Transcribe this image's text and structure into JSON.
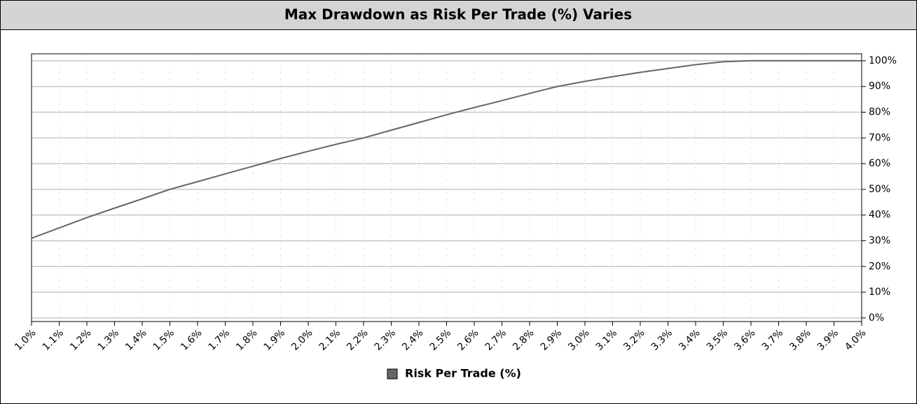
{
  "chart_data": {
    "type": "line",
    "title": "Max Drawdown as Risk Per Trade (%) Varies",
    "x": [
      1.0,
      1.1,
      1.2,
      1.3,
      1.4,
      1.5,
      1.6,
      1.7,
      1.8,
      1.9,
      2.0,
      2.1,
      2.2,
      2.3,
      2.4,
      2.5,
      2.6,
      2.7,
      2.8,
      2.9,
      3.0,
      3.1,
      3.2,
      3.3,
      3.4,
      3.5,
      3.6,
      3.7,
      3.8,
      3.9,
      4.0
    ],
    "series": [
      {
        "name": "Risk Per Trade (%)",
        "color": "#666666",
        "values": [
          31,
          35,
          39,
          42.7,
          46.3,
          50,
          53,
          56,
          59,
          62,
          64.8,
          67.5,
          70,
          73,
          76,
          79,
          81.8,
          84.5,
          87.3,
          90,
          92,
          93.8,
          95.5,
          97,
          98.5,
          99.6,
          100,
          100,
          100,
          100,
          100
        ]
      }
    ],
    "xlim": [
      1.0,
      4.0
    ],
    "xticks": [
      {
        "value": 1.0,
        "label": "1.0%"
      },
      {
        "value": 1.1,
        "label": "1.1%"
      },
      {
        "value": 1.2,
        "label": "1.2%"
      },
      {
        "value": 1.3,
        "label": "1.3%"
      },
      {
        "value": 1.4,
        "label": "1.4%"
      },
      {
        "value": 1.5,
        "label": "1.5%"
      },
      {
        "value": 1.6,
        "label": "1.6%"
      },
      {
        "value": 1.7,
        "label": "1.7%"
      },
      {
        "value": 1.8,
        "label": "1.8%"
      },
      {
        "value": 1.9,
        "label": "1.9%"
      },
      {
        "value": 2.0,
        "label": "2.0%"
      },
      {
        "value": 2.1,
        "label": "2.1%"
      },
      {
        "value": 2.2,
        "label": "2.2%"
      },
      {
        "value": 2.3,
        "label": "2.3%"
      },
      {
        "value": 2.4,
        "label": "2.4%"
      },
      {
        "value": 2.5,
        "label": "2.5%"
      },
      {
        "value": 2.6,
        "label": "2.6%"
      },
      {
        "value": 2.7,
        "label": "2.7%"
      },
      {
        "value": 2.8,
        "label": "2.8%"
      },
      {
        "value": 2.9,
        "label": "2.9%"
      },
      {
        "value": 3.0,
        "label": "3.0%"
      },
      {
        "value": 3.1,
        "label": "3.1%"
      },
      {
        "value": 3.2,
        "label": "3.2%"
      },
      {
        "value": 3.3,
        "label": "3.3%"
      },
      {
        "value": 3.4,
        "label": "3.4%"
      },
      {
        "value": 3.5,
        "label": "3.5%"
      },
      {
        "value": 3.6,
        "label": "3.6%"
      },
      {
        "value": 3.7,
        "label": "3.7%"
      },
      {
        "value": 3.8,
        "label": "3.8%"
      },
      {
        "value": 3.9,
        "label": "3.9%"
      },
      {
        "value": 4.0,
        "label": "4.0%"
      }
    ],
    "ylim": [
      -1.4,
      102.7
    ],
    "yticks": [
      {
        "value": 0,
        "label": "0%"
      },
      {
        "value": 10,
        "label": "10%"
      },
      {
        "value": 20,
        "label": "20%"
      },
      {
        "value": 30,
        "label": "30%"
      },
      {
        "value": 40,
        "label": "40%"
      },
      {
        "value": 50,
        "label": "50%"
      },
      {
        "value": 60,
        "label": "60%"
      },
      {
        "value": 70,
        "label": "70%"
      },
      {
        "value": 80,
        "label": "80%"
      },
      {
        "value": 90,
        "label": "90%"
      },
      {
        "value": 100,
        "label": "100%"
      }
    ],
    "grid": true,
    "legend": "bottom"
  }
}
